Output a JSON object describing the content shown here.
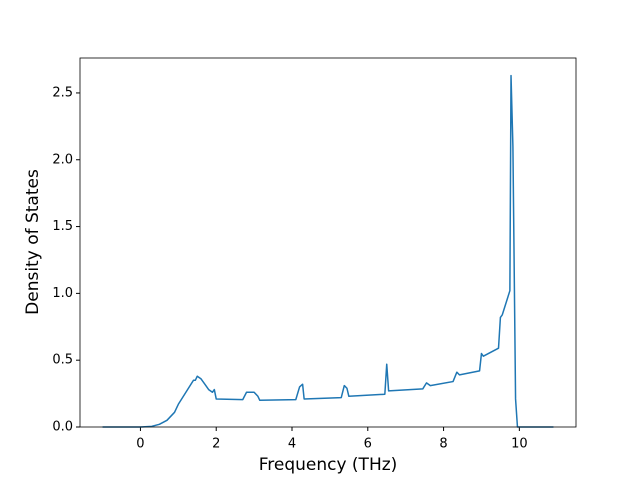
{
  "chart_data": {
    "type": "line",
    "xlabel": "Frequency (THz)",
    "ylabel": "Density of States",
    "x": [
      -1.0,
      0.0,
      0.3,
      0.5,
      0.7,
      0.9,
      1.0,
      1.2,
      1.4,
      1.45,
      1.5,
      1.6,
      1.7,
      1.8,
      1.9,
      1.95,
      2.0,
      2.7,
      2.8,
      2.9,
      3.0,
      3.1,
      3.15,
      4.1,
      4.2,
      4.28,
      4.32,
      5.3,
      5.38,
      5.45,
      5.5,
      6.45,
      6.5,
      6.55,
      7.45,
      7.55,
      7.65,
      8.25,
      8.35,
      8.42,
      8.95,
      9.0,
      9.05,
      9.45,
      9.5,
      9.55,
      9.75,
      9.78,
      9.83,
      9.9,
      9.95,
      10.9
    ],
    "series": [
      {
        "color": "#1f77b4",
        "values": [
          0,
          0,
          0.005,
          0.02,
          0.05,
          0.11,
          0.17,
          0.26,
          0.35,
          0.35,
          0.38,
          0.36,
          0.32,
          0.28,
          0.26,
          0.28,
          0.21,
          0.205,
          0.26,
          0.26,
          0.26,
          0.23,
          0.2,
          0.205,
          0.3,
          0.32,
          0.21,
          0.22,
          0.31,
          0.29,
          0.23,
          0.245,
          0.47,
          0.27,
          0.285,
          0.33,
          0.31,
          0.34,
          0.41,
          0.39,
          0.42,
          0.55,
          0.53,
          0.59,
          0.82,
          0.84,
          1.02,
          2.63,
          2.1,
          0.21,
          0,
          0
        ]
      }
    ],
    "xlim": [
      -1.595,
      11.495
    ],
    "ylim": [
      0,
      2.7615
    ],
    "xticks": [
      0,
      2,
      4,
      6,
      8,
      10
    ],
    "yticks": [
      {
        "value": 0,
        "label": "0.0"
      },
      {
        "value": 0.5,
        "label": "0.5"
      },
      {
        "value": 1,
        "label": "1.0"
      },
      {
        "value": 1.5,
        "label": "1.5"
      },
      {
        "value": 2,
        "label": "2.0"
      },
      {
        "value": 2.5,
        "label": "2.5"
      }
    ]
  }
}
